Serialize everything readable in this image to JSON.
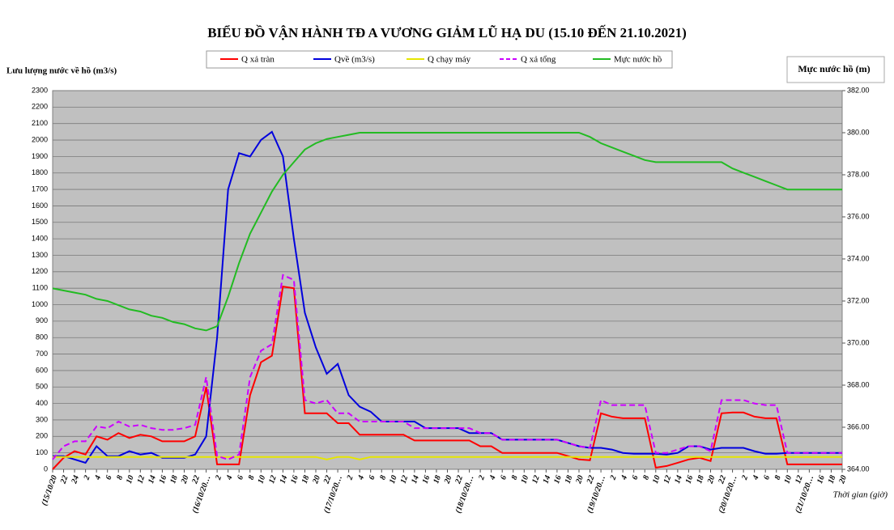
{
  "chart_data": {
    "type": "line",
    "title": "BIỂU ĐỒ VẬN HÀNH TĐ A VƯƠNG GIẢM LŨ HẠ DU (15.10 ĐẾN 21.10.2021)",
    "y_label": "Lưu lượng nước về hồ (m3/s)",
    "y2_label": "Mực nước hồ (m)",
    "x_label": "Thời gian (giờ)",
    "grid": true,
    "categories": [
      "(15/10/20",
      "22",
      "24",
      "2",
      "4",
      "6",
      "8",
      "10",
      "12",
      "14",
      "16",
      "18",
      "20",
      "22",
      "(16/10/20…",
      "2",
      "4",
      "6",
      "8",
      "10",
      "12",
      "14",
      "16",
      "18",
      "20",
      "22",
      "(17/10/20…",
      "2",
      "4",
      "6",
      "8",
      "10",
      "12",
      "14",
      "16",
      "18",
      "20",
      "22",
      "(18/10/20…",
      "2",
      "4",
      "6",
      "8",
      "10",
      "12",
      "14",
      "16",
      "18",
      "20",
      "22",
      "(19/10/20…",
      "2",
      "4",
      "6",
      "8",
      "10",
      "12",
      "14",
      "16",
      "18",
      "20",
      "22",
      "(20/10/20…",
      "2",
      "4",
      "6",
      "8",
      "10",
      "12",
      "(21/10/20…",
      "16",
      "18",
      "20"
    ],
    "ylim": [
      0,
      2300
    ],
    "yticks": [
      0,
      100,
      200,
      300,
      400,
      500,
      600,
      700,
      800,
      900,
      1000,
      1100,
      1200,
      1300,
      1400,
      1500,
      1600,
      1700,
      1800,
      1900,
      2000,
      2100,
      2200,
      2300
    ],
    "y2lim": [
      364,
      382
    ],
    "y2ticks": [
      {
        "value": 364,
        "label": "364.00"
      },
      {
        "value": 366,
        "label": "366.00"
      },
      {
        "value": 368,
        "label": "368.00"
      },
      {
        "value": 370,
        "label": "370.00"
      },
      {
        "value": 372,
        "label": "372.00"
      },
      {
        "value": 374,
        "label": "374.00"
      },
      {
        "value": 376,
        "label": "376.00"
      },
      {
        "value": 378,
        "label": "378.00"
      },
      {
        "value": 380,
        "label": "380.00"
      },
      {
        "value": 382,
        "label": "382.00"
      }
    ],
    "series": [
      {
        "name": "Q xả tràn",
        "color": "#ff0000",
        "style": "solid",
        "values": [
          0,
          70,
          110,
          90,
          200,
          180,
          220,
          190,
          210,
          200,
          170,
          170,
          170,
          200,
          500,
          30,
          30,
          30,
          450,
          650,
          690,
          1110,
          1100,
          340,
          340,
          340,
          280,
          280,
          210,
          210,
          210,
          210,
          210,
          175,
          175,
          175,
          175,
          175,
          175,
          140,
          140,
          100,
          100,
          100,
          100,
          100,
          100,
          80,
          60,
          55,
          340,
          320,
          310,
          310,
          310,
          10,
          20,
          40,
          60,
          70,
          50,
          340,
          345,
          345,
          320,
          310,
          310,
          30,
          30,
          30,
          30,
          30,
          30
        ]
      },
      {
        "name": "Qvề (m3/s)",
        "color": "#0000dd",
        "style": "solid",
        "values": [
          80,
          80,
          60,
          40,
          140,
          80,
          80,
          110,
          90,
          100,
          70,
          70,
          70,
          90,
          200,
          800,
          1700,
          1920,
          1900,
          2000,
          2050,
          1900,
          1400,
          950,
          740,
          580,
          640,
          450,
          380,
          350,
          290,
          290,
          290,
          290,
          250,
          250,
          250,
          250,
          220,
          220,
          220,
          180,
          180,
          180,
          180,
          180,
          180,
          160,
          140,
          130,
          130,
          120,
          100,
          95,
          95,
          95,
          90,
          100,
          140,
          140,
          120,
          130,
          130,
          130,
          110,
          95,
          95,
          100,
          100,
          100,
          100,
          100,
          100
        ]
      },
      {
        "name": "Q chạy máy",
        "color": "#e6e600",
        "style": "solid",
        "values": [
          75,
          75,
          75,
          75,
          75,
          75,
          75,
          75,
          75,
          75,
          75,
          75,
          75,
          75,
          75,
          75,
          75,
          75,
          75,
          75,
          75,
          75,
          75,
          75,
          75,
          60,
          75,
          75,
          60,
          75,
          75,
          75,
          75,
          75,
          75,
          75,
          75,
          75,
          75,
          75,
          75,
          75,
          75,
          75,
          75,
          75,
          75,
          75,
          75,
          75,
          75,
          75,
          75,
          75,
          75,
          75,
          75,
          75,
          75,
          75,
          75,
          75,
          75,
          75,
          75,
          75,
          75,
          75,
          75,
          75,
          75,
          75,
          75
        ]
      },
      {
        "name": "Q xả tổng",
        "color": "#cc00ff",
        "style": "dashed",
        "values": [
          60,
          140,
          170,
          170,
          260,
          250,
          290,
          260,
          270,
          250,
          240,
          240,
          250,
          270,
          560,
          80,
          60,
          90,
          560,
          720,
          760,
          1180,
          1150,
          420,
          400,
          420,
          340,
          340,
          290,
          290,
          290,
          290,
          290,
          250,
          250,
          250,
          250,
          250,
          250,
          220,
          220,
          180,
          180,
          180,
          180,
          180,
          180,
          160,
          140,
          130,
          420,
          390,
          390,
          390,
          390,
          100,
          100,
          120,
          140,
          140,
          110,
          420,
          420,
          420,
          400,
          390,
          390,
          100,
          100,
          100,
          100,
          100,
          100
        ]
      },
      {
        "name": "Mực nước hồ",
        "color": "#22bb22",
        "style": "solid",
        "axis": "y2",
        "values": [
          372.6,
          372.5,
          372.4,
          372.3,
          372.1,
          372.0,
          371.8,
          371.6,
          371.5,
          371.3,
          371.2,
          371.0,
          370.9,
          370.7,
          370.6,
          370.8,
          372.2,
          373.8,
          375.2,
          376.2,
          377.2,
          378.0,
          378.6,
          379.2,
          379.5,
          379.7,
          379.8,
          379.9,
          380.0,
          380.0,
          380.0,
          380.0,
          380.0,
          380.0,
          380.0,
          380.0,
          380.0,
          380.0,
          380.0,
          380.0,
          380.0,
          380.0,
          380.0,
          380.0,
          380.0,
          380.0,
          380.0,
          380.0,
          380.0,
          379.8,
          379.5,
          379.3,
          379.1,
          378.9,
          378.7,
          378.6,
          378.6,
          378.6,
          378.6,
          378.6,
          378.6,
          378.6,
          378.3,
          378.1,
          377.9,
          377.7,
          377.5,
          377.3,
          377.3,
          377.3,
          377.3,
          377.3,
          377.3
        ]
      }
    ]
  }
}
